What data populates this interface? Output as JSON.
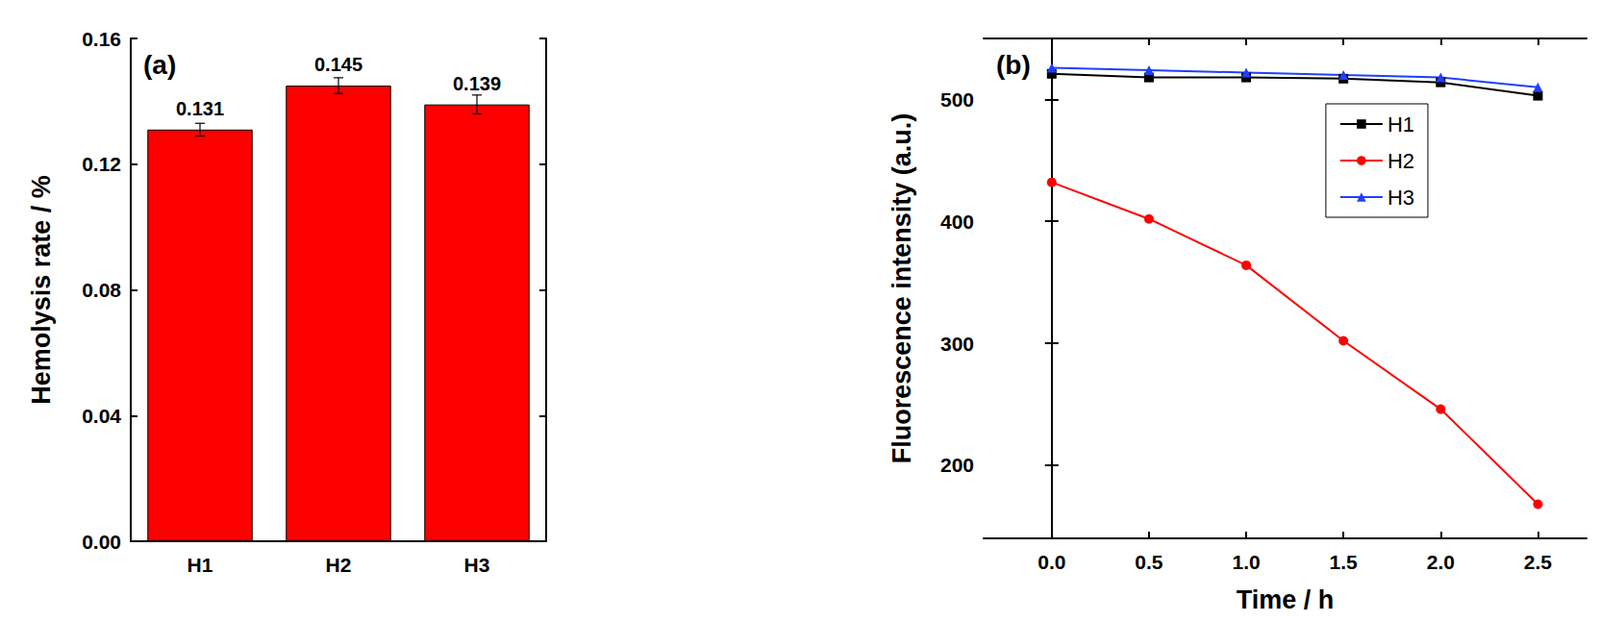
{
  "chart_data": [
    {
      "type": "bar",
      "title": "(a)",
      "y_label": "Hemolysis rate / %",
      "categories": [
        "H1",
        "H2",
        "H3"
      ],
      "values": [
        0.131,
        0.145,
        0.139
      ],
      "errors": [
        0.002,
        0.0025,
        0.003
      ],
      "color": "#ff0000",
      "ylim": [
        0,
        0.16
      ],
      "yticks": [
        {
          "value": 0,
          "label": "0.00"
        },
        0.04,
        0.08,
        0.12,
        0.16
      ],
      "data_labels": true,
      "grid": false
    },
    {
      "type": "line",
      "title": "(b)",
      "x_label": "Time / h",
      "y_label": "Fluorescence intensity (a.u.)",
      "x": [
        0,
        0.5,
        1,
        1.5,
        2,
        2.5
      ],
      "series": [
        {
          "name": "H1",
          "color": "#000000",
          "marker": "square",
          "values": [
            521,
            518,
            518,
            517,
            514,
            503
          ]
        },
        {
          "name": "H2",
          "color": "#ff0000",
          "marker": "circle",
          "values": [
            432,
            402,
            364,
            302,
            246,
            168
          ]
        },
        {
          "name": "H3",
          "color": "#1f3fff",
          "marker": "triangle",
          "values": [
            526,
            524,
            522,
            520,
            518,
            510
          ]
        }
      ],
      "xlim": [
        -0.35,
        2.75
      ],
      "xticks": [
        {
          "value": 0,
          "label": "0.0"
        },
        {
          "value": 0.5,
          "label": "0.5"
        },
        {
          "value": 1,
          "label": "1.0"
        },
        {
          "value": 1.5,
          "label": "1.5"
        },
        {
          "value": 2,
          "label": "2.0"
        },
        {
          "value": 2.5,
          "label": "2.5"
        }
      ],
      "ylim": [
        140,
        550
      ],
      "yticks": [
        200,
        300,
        400,
        500
      ],
      "legend": "upper right",
      "grid": false
    }
  ]
}
